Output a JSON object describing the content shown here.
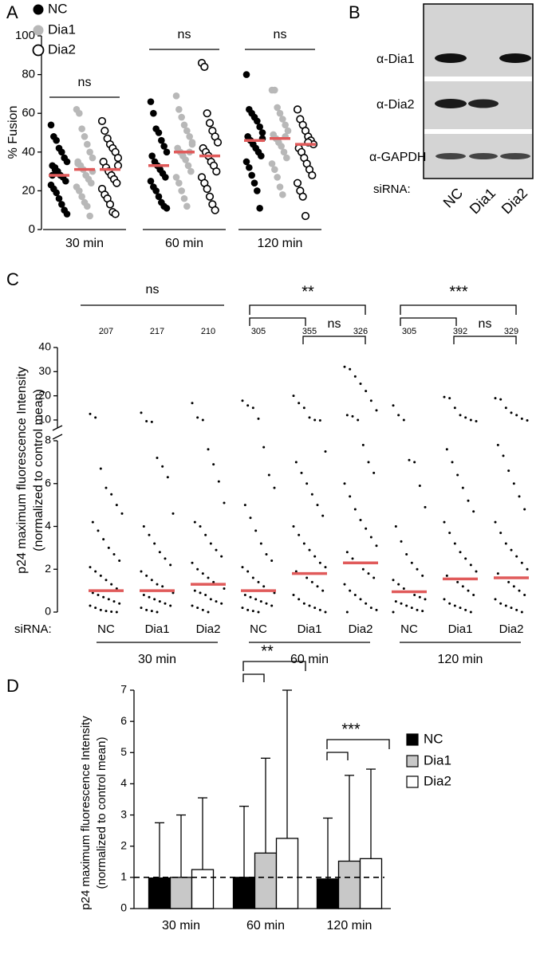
{
  "chart_data": [
    {
      "panel": "A",
      "type": "dotplot",
      "ylabel": "% Fusion",
      "ylim": [
        0,
        100
      ],
      "yticks": [
        0,
        20,
        40,
        60,
        80,
        100
      ],
      "groups": [
        "30 min",
        "60 min",
        "120 min"
      ],
      "median_color": "#e05a5a",
      "significance": [
        [
          "ns"
        ],
        [
          "ns"
        ],
        [
          "ns"
        ]
      ],
      "series": [
        {
          "name": "NC",
          "color": "#000000",
          "marker": "filled",
          "medians": [
            28,
            33,
            46
          ],
          "values": [
            [
              54,
              48,
              46,
              42,
              40,
              37,
              35,
              33,
              31,
              30,
              28,
              27,
              25,
              23,
              21,
              19,
              16,
              13,
              10,
              8,
              28,
              32
            ],
            [
              66,
              60,
              52,
              50,
              46,
              43,
              40,
              38,
              35,
              33,
              31,
              29,
              27,
              25,
              22,
              20,
              17,
              14,
              12,
              11
            ],
            [
              80,
              62,
              60,
              58,
              56,
              53,
              50,
              48,
              46,
              44,
              42,
              40,
              38,
              35,
              32,
              28,
              24,
              20,
              11,
              47
            ]
          ]
        },
        {
          "name": "Dia1",
          "color": "#b8b8b8",
          "marker": "filled",
          "medians": [
            31,
            40,
            47
          ],
          "values": [
            [
              62,
              60,
              52,
              48,
              44,
              40,
              37,
              35,
              33,
              31,
              28,
              26,
              24,
              22,
              20,
              17,
              14,
              12,
              7,
              30,
              34
            ],
            [
              69,
              62,
              58,
              54,
              51,
              48,
              45,
              42,
              40,
              38,
              36,
              33,
              30,
              27,
              24,
              20,
              16,
              12,
              40,
              44
            ],
            [
              72,
              72,
              63,
              60,
              57,
              54,
              51,
              49,
              47,
              45,
              43,
              40,
              37,
              34,
              31,
              27,
              22,
              18,
              48
            ]
          ]
        },
        {
          "name": "Dia2",
          "color": "#000000",
          "marker": "open",
          "medians": [
            31,
            38,
            44
          ],
          "values": [
            [
              56,
              51,
              47,
              44,
              42,
              40,
              37,
              35,
              32,
              30,
              28,
              26,
              24,
              21,
              18,
              16,
              13,
              9,
              8,
              33
            ],
            [
              86,
              84,
              60,
              55,
              51,
              48,
              45,
              42,
              40,
              38,
              35,
              33,
              30,
              27,
              24,
              21,
              17,
              13,
              10
            ],
            [
              62,
              57,
              54,
              51,
              48,
              46,
              44,
              42,
              40,
              37,
              34,
              31,
              28,
              24,
              20,
              17,
              7,
              45
            ]
          ]
        }
      ]
    },
    {
      "panel": "C",
      "type": "dotplot",
      "ylabel": [
        "p24 maximum fluorescence Intensity",
        "(normalized to control mean)"
      ],
      "ylim": [
        0,
        8
      ],
      "yticks": [
        0,
        2,
        4,
        6,
        8
      ],
      "ylim_upper": [
        8,
        40
      ],
      "yticks_upper": [
        10,
        20,
        30,
        40
      ],
      "groups": [
        "30 min",
        "60 min",
        "120 min"
      ],
      "category_label": "siRNA:",
      "median_color": "#e05a5a",
      "significance": [
        [
          "ns"
        ],
        [
          "**",
          "ns"
        ],
        [
          "***",
          "ns"
        ]
      ],
      "series": [
        {
          "name": "NC",
          "color": "#000000",
          "counts": [
            207,
            305,
            305
          ],
          "medians": [
            1.0,
            1.0,
            0.95
          ],
          "values": [
            [
              12.5,
              11,
              6.7,
              5.8,
              5.5,
              5.0,
              4.6,
              4.2,
              3.8,
              3.4,
              3.0,
              2.7,
              2.4,
              2.1,
              1.9,
              1.7,
              1.5,
              1.3,
              1.1,
              1.0,
              0.9,
              0.8,
              0.7,
              0.6,
              0.5,
              0.4,
              0.3,
              0.2,
              0.1,
              0.05,
              0.02,
              0
            ],
            [
              18,
              16,
              15,
              10.5,
              7.7,
              6.4,
              5.8,
              5.0,
              4.4,
              3.8,
              3.2,
              2.7,
              2.4,
              2.1,
              1.9,
              1.6,
              1.4,
              1.2,
              1.0,
              0.9,
              0.8,
              0.7,
              0.6,
              0.5,
              0.4,
              0.3,
              0.2,
              0.1,
              0.05,
              0
            ],
            [
              16,
              12,
              10,
              7.1,
              7.0,
              5.9,
              4.9,
              4.0,
              3.3,
              2.7,
              2.3,
              2.0,
              1.7,
              1.5,
              1.3,
              1.1,
              0.95,
              0.8,
              0.7,
              0.6,
              0.5,
              0.4,
              0.3,
              0.2,
              0.1,
              0.05,
              0
            ]
          ]
        },
        {
          "name": "Dia1",
          "color": "#000000",
          "counts": [
            217,
            355,
            392
          ],
          "medians": [
            1.0,
            1.8,
            1.55
          ],
          "values": [
            [
              13,
              9.5,
              9.2,
              7.2,
              6.8,
              6.3,
              4.6,
              4.0,
              3.6,
              3.2,
              2.8,
              2.5,
              2.2,
              1.9,
              1.7,
              1.5,
              1.3,
              1.2,
              1.0,
              0.9,
              0.8,
              0.7,
              0.6,
              0.5,
              0.4,
              0.3,
              0.2,
              0.1,
              0.05,
              0
            ],
            [
              20,
              17,
              15,
              11,
              10,
              9.8,
              7.5,
              7.0,
              6.5,
              6.0,
              5.5,
              5.0,
              4.5,
              4.0,
              3.6,
              3.2,
              2.9,
              2.6,
              2.3,
              2.1,
              1.9,
              1.8,
              1.6,
              1.4,
              1.2,
              1.0,
              0.8,
              0.6,
              0.4,
              0.3,
              0.2,
              0.1,
              0
            ],
            [
              19.5,
              19,
              15,
              12,
              11,
              10,
              9.5,
              7.6,
              7.0,
              6.4,
              5.8,
              5.2,
              4.7,
              4.2,
              3.7,
              3.2,
              2.8,
              2.5,
              2.2,
              1.9,
              1.7,
              1.55,
              1.4,
              1.2,
              1.0,
              0.8,
              0.6,
              0.4,
              0.3,
              0.2,
              0.1,
              0
            ]
          ]
        },
        {
          "name": "Dia2",
          "color": "#000000",
          "counts": [
            210,
            326,
            329
          ],
          "medians": [
            1.3,
            2.3,
            1.6
          ],
          "values": [
            [
              17,
              11,
              10,
              7.6,
              6.9,
              6.1,
              5.1,
              4.2,
              4.0,
              3.6,
              3.2,
              2.9,
              2.6,
              2.3,
              2.0,
              1.8,
              1.6,
              1.4,
              1.3,
              1.1,
              1.0,
              0.9,
              0.8,
              0.6,
              0.5,
              0.4,
              0.3,
              0.2,
              0.1,
              0
            ],
            [
              32,
              31,
              28,
              25,
              22,
              18,
              14,
              12,
              11.5,
              10,
              7.8,
              7.0,
              6.5,
              6.0,
              5.4,
              4.8,
              4.3,
              3.9,
              3.5,
              3.1,
              2.8,
              2.5,
              2.3,
              2.0,
              1.8,
              1.6,
              1.3,
              1.0,
              0.8,
              0.6,
              0.4,
              0.2,
              0.1,
              0
            ],
            [
              19,
              18.5,
              15,
              13,
              12,
              10.5,
              9.8,
              7.8,
              7.3,
              6.6,
              6.0,
              5.4,
              4.8,
              4.2,
              3.7,
              3.2,
              2.9,
              2.6,
              2.3,
              2.0,
              1.8,
              1.6,
              1.4,
              1.2,
              1.0,
              0.8,
              0.6,
              0.4,
              0.3,
              0.2,
              0.1,
              0
            ]
          ]
        }
      ]
    },
    {
      "panel": "D",
      "type": "bar",
      "ylabel": [
        "p24 maximum fluorescence Intensity",
        "(normalized to control mean)"
      ],
      "ylim": [
        0,
        7
      ],
      "yticks": [
        0,
        1,
        2,
        3,
        4,
        5,
        6,
        7
      ],
      "reference_line": 1,
      "categories": [
        "30 min",
        "60 min",
        "120 min"
      ],
      "significance": [
        null,
        "**",
        "***"
      ],
      "series": [
        {
          "name": "NC",
          "color": "#000000",
          "values": [
            0.98,
            1.0,
            0.95
          ],
          "errors": [
            1.77,
            2.28,
            1.95
          ]
        },
        {
          "name": "Dia1",
          "color": "#c8c8c8",
          "values": [
            1.0,
            1.78,
            1.52
          ],
          "errors": [
            2.0,
            3.04,
            2.75
          ]
        },
        {
          "name": "Dia2",
          "color": "#ffffff",
          "values": [
            1.25,
            2.25,
            1.6
          ],
          "errors": [
            2.3,
            4.75,
            2.87
          ]
        }
      ]
    }
  ],
  "blot": {
    "panel": "B",
    "rows": [
      "α-Dia1",
      "α-Dia2",
      "α-GAPDH"
    ],
    "lanes_label": "siRNA:",
    "lanes": [
      "NC",
      "Dia1",
      "Dia2"
    ]
  }
}
